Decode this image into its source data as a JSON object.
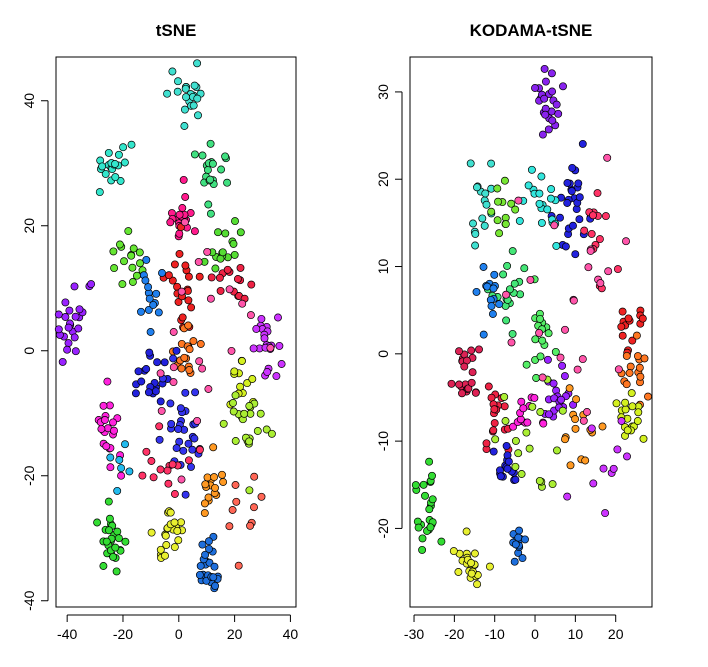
{
  "chart_data": [
    {
      "type": "scatter",
      "title": "tSNE",
      "xlim": [
        -44,
        42
      ],
      "ylim": [
        -41,
        47
      ],
      "x_ticks": [
        -40,
        -20,
        0,
        20,
        40
      ],
      "y_ticks": [
        -40,
        -20,
        0,
        20,
        40
      ],
      "x_tick_labels": [
        "-40",
        "-20",
        "0",
        "20",
        "40"
      ],
      "y_tick_labels": [
        "-40",
        "-20",
        "0",
        "20",
        "40"
      ],
      "point_colors": "rainbow palette (red, orange, yellow, green, cyan, blue, violet, magenta)",
      "clusters": [
        {
          "color": "#40e0d0",
          "cx": 4,
          "cy": 41,
          "sx": 3,
          "sy": 2.5,
          "n": 22
        },
        {
          "color": "#33e6cc",
          "cx": -22,
          "cy": 29,
          "sx": 3,
          "sy": 2,
          "n": 20
        },
        {
          "color": "#40e080",
          "cx": 12,
          "cy": 28,
          "sx": 2.5,
          "sy": 2.5,
          "n": 20
        },
        {
          "color": "#ff1a8c",
          "cx": 0,
          "cy": 22,
          "sx": 3,
          "sy": 2.5,
          "n": 20
        },
        {
          "color": "#66e633",
          "cx": -18,
          "cy": 15,
          "sx": 3,
          "sy": 2,
          "n": 16
        },
        {
          "color": "#55dd33",
          "cx": 17,
          "cy": 16,
          "sx": 3,
          "sy": 2,
          "n": 16
        },
        {
          "color": "#ee2222",
          "cx": 2,
          "cy": 10,
          "sx": 3,
          "sy": 3,
          "n": 22
        },
        {
          "color": "#ee2244",
          "cx": 20,
          "cy": 10,
          "sx": 4,
          "sy": 2,
          "n": 14
        },
        {
          "color": "#2080ee",
          "cx": -10,
          "cy": 10,
          "sx": 2.5,
          "sy": 4,
          "n": 14
        },
        {
          "color": "#9922ff",
          "cx": -38,
          "cy": 5,
          "sx": 3,
          "sy": 3,
          "n": 24
        },
        {
          "color": "#cc33ff",
          "cx": 31,
          "cy": 0,
          "sx": 3,
          "sy": 3,
          "n": 22
        },
        {
          "color": "#ff7722",
          "cx": 2,
          "cy": 0,
          "sx": 2.5,
          "sy": 2.5,
          "n": 18
        },
        {
          "color": "#2222dd",
          "cx": -10,
          "cy": -5,
          "sx": 3,
          "sy": 3,
          "n": 20
        },
        {
          "color": "#d4f020",
          "cx": 22,
          "cy": -5,
          "sx": 2.5,
          "sy": 2.5,
          "n": 14
        },
        {
          "color": "#ff22dd",
          "cx": -24,
          "cy": -12,
          "sx": 3,
          "sy": 4,
          "n": 22
        },
        {
          "color": "#3333ee",
          "cx": 2,
          "cy": -12,
          "sx": 4,
          "sy": 4,
          "n": 30
        },
        {
          "color": "#aaee33",
          "cx": 25,
          "cy": -14,
          "sx": 4,
          "sy": 4,
          "n": 22
        },
        {
          "color": "#ff9922",
          "cx": 12,
          "cy": -22,
          "sx": 3,
          "sy": 2.5,
          "n": 16
        },
        {
          "color": "#e8f030",
          "cx": -4,
          "cy": -28,
          "sx": 3,
          "sy": 3,
          "n": 22
        },
        {
          "color": "#33dd33",
          "cx": -23,
          "cy": -30,
          "sx": 3,
          "sy": 3,
          "n": 28
        },
        {
          "color": "#1e6fdd",
          "cx": 11,
          "cy": -35,
          "sx": 2,
          "sy": 2.5,
          "n": 24
        },
        {
          "color": "#ff3366",
          "cx": -3,
          "cy": -18,
          "sx": 6,
          "sy": 3,
          "n": 14
        },
        {
          "color": "#ff55aa",
          "cx": 8,
          "cy": 3,
          "sx": 8,
          "sy": 8,
          "n": 20
        },
        {
          "color": "#22bbee",
          "cx": -22,
          "cy": -18,
          "sx": 4,
          "sy": 2,
          "n": 6
        },
        {
          "color": "#ff6655",
          "cx": 25,
          "cy": -25,
          "sx": 4,
          "sy": 3,
          "n": 10
        }
      ]
    },
    {
      "type": "scatter",
      "title": "KODAMA-tSNE",
      "xlim": [
        -31,
        29
      ],
      "ylim": [
        -29,
        34
      ],
      "x_ticks": [
        -30,
        -20,
        -10,
        0,
        10,
        20
      ],
      "y_ticks": [
        -20,
        -10,
        0,
        10,
        20,
        30
      ],
      "x_tick_labels": [
        "-30",
        "-20",
        "-10",
        "0",
        "10",
        "20"
      ],
      "y_tick_labels": [
        "-20",
        "-10",
        "0",
        "10",
        "20",
        "30"
      ],
      "point_colors": "rainbow palette (red, orange, yellow, green, cyan, blue, violet, magenta)",
      "clusters": [
        {
          "color": "#8822ee",
          "cx": 3,
          "cy": 29,
          "sx": 1.5,
          "sy": 2,
          "n": 24
        },
        {
          "color": "#2222dd",
          "cx": 9,
          "cy": 16,
          "sx": 2.5,
          "sy": 3,
          "n": 28
        },
        {
          "color": "#33e6dd",
          "cx": 1,
          "cy": 17,
          "sx": 2.5,
          "sy": 2,
          "n": 20
        },
        {
          "color": "#40e0d0",
          "cx": -13,
          "cy": 17,
          "sx": 2,
          "sy": 2,
          "n": 16
        },
        {
          "color": "#77e633",
          "cx": -8,
          "cy": 17,
          "sx": 1.5,
          "sy": 2,
          "n": 12
        },
        {
          "color": "#44e677",
          "cx": -6,
          "cy": 8,
          "sx": 2,
          "sy": 2,
          "n": 18
        },
        {
          "color": "#2080ee",
          "cx": -12,
          "cy": 6,
          "sx": 1.5,
          "sy": 2,
          "n": 14
        },
        {
          "color": "#55ee66",
          "cx": 2,
          "cy": 2,
          "sx": 1.5,
          "sy": 2.5,
          "n": 18
        },
        {
          "color": "#ff3366",
          "cx": 16,
          "cy": 14,
          "sx": 2,
          "sy": 3,
          "n": 14
        },
        {
          "color": "#ee2222",
          "cx": 23,
          "cy": 4,
          "sx": 1.5,
          "sy": 2,
          "n": 14
        },
        {
          "color": "#ff7722",
          "cx": 24,
          "cy": -2,
          "sx": 2,
          "sy": 2,
          "n": 16
        },
        {
          "color": "#d4f020",
          "cx": 24,
          "cy": -7,
          "sx": 2,
          "sy": 2,
          "n": 18
        },
        {
          "color": "#dd2255",
          "cx": -17,
          "cy": -3,
          "sx": 2,
          "sy": 2.5,
          "n": 22
        },
        {
          "color": "#ee2244",
          "cx": -10,
          "cy": -7,
          "sx": 2,
          "sy": 2.5,
          "n": 18
        },
        {
          "color": "#9922ff",
          "cx": 6,
          "cy": -5,
          "sx": 2,
          "sy": 2.5,
          "n": 20
        },
        {
          "color": "#ff22dd",
          "cx": -2,
          "cy": -7,
          "sx": 2,
          "sy": 2,
          "n": 14
        },
        {
          "color": "#2222dd",
          "cx": -7,
          "cy": -13,
          "sx": 1.5,
          "sy": 1.5,
          "n": 16
        },
        {
          "color": "#33dd33",
          "cx": -27,
          "cy": -18,
          "sx": 1.5,
          "sy": 2,
          "n": 24
        },
        {
          "color": "#e8f030",
          "cx": -17,
          "cy": -24,
          "sx": 2,
          "sy": 1.3,
          "n": 22
        },
        {
          "color": "#1e6fdd",
          "cx": -4,
          "cy": -22,
          "sx": 1,
          "sy": 1.2,
          "n": 14
        },
        {
          "color": "#ff9922",
          "cx": 12,
          "cy": -10,
          "sx": 3,
          "sy": 3,
          "n": 14
        },
        {
          "color": "#aaee33",
          "cx": 0,
          "cy": -10,
          "sx": 4,
          "sy": 4,
          "n": 18
        },
        {
          "color": "#ff55aa",
          "cx": 8,
          "cy": 6,
          "sx": 8,
          "sy": 8,
          "n": 24
        },
        {
          "color": "#cc33ff",
          "cx": 15,
          "cy": -13,
          "sx": 4,
          "sy": 3,
          "n": 10
        }
      ]
    }
  ]
}
